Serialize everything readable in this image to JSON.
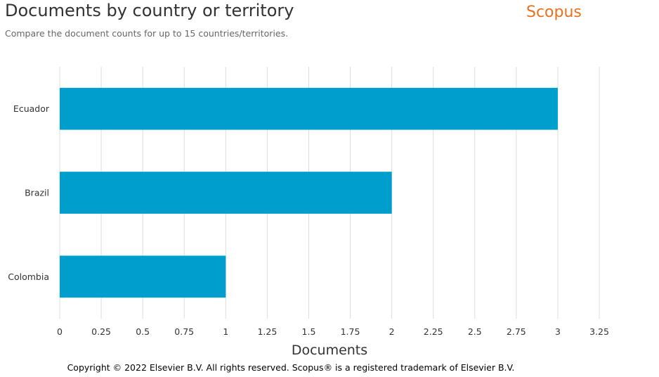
{
  "header": {
    "title": "Documents by country or territory",
    "subtitle": "Compare the document counts for up to 15 countries/territories.",
    "logo_text": "Scopus"
  },
  "chart_data": {
    "type": "bar",
    "orientation": "horizontal",
    "categories": [
      "Ecuador",
      "Brazil",
      "Colombia"
    ],
    "values": [
      3,
      2,
      1
    ],
    "xlabel": "Documents",
    "xlim": [
      0,
      3.25
    ],
    "xticks": [
      0,
      0.25,
      0.5,
      0.75,
      1,
      1.25,
      1.5,
      1.75,
      2,
      2.25,
      2.5,
      2.75,
      3,
      3.25
    ],
    "xtick_labels": [
      "0",
      "0.25",
      "0.5",
      "0.75",
      "1",
      "1.25",
      "1.5",
      "1.75",
      "2",
      "2.25",
      "2.5",
      "2.75",
      "3",
      "3.25"
    ],
    "grid": true,
    "bar_color": "#009ecc"
  },
  "footer": {
    "copyright": "Copyright © 2022 Elsevier B.V. All rights reserved. Scopus® is a registered trademark of Elsevier B.V."
  },
  "colors": {
    "logo": "#e9711c",
    "grid": "#dddddd"
  }
}
